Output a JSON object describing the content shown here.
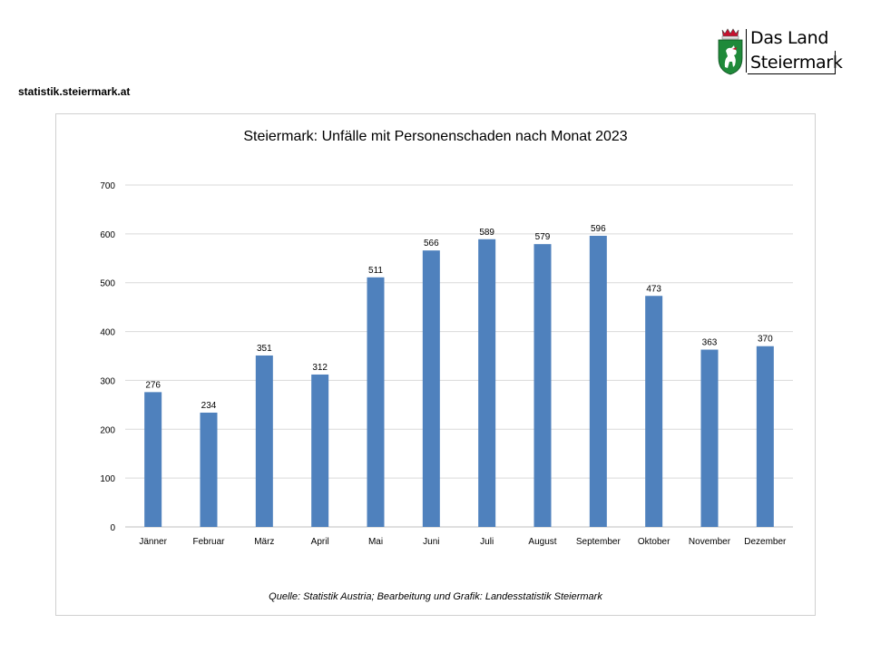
{
  "header": {
    "site_url": "statistik.steiermark.at",
    "logo_line1": "Das Land",
    "logo_line2": "Steiermark"
  },
  "colors": {
    "bar": "#4f81bd",
    "grid": "#d9d9d9",
    "crest_green": "#1f8a3a",
    "crest_red": "#c8102e"
  },
  "chart_data": {
    "type": "bar",
    "title": "Steiermark: Unfälle mit Personenschaden nach Monat 2023",
    "source": "Quelle: Statistik Austria; Bearbeitung und Grafik: Landesstatistik Steiermark",
    "categories": [
      "Jänner",
      "Februar",
      "März",
      "April",
      "Mai",
      "Juni",
      "Juli",
      "August",
      "September",
      "Oktober",
      "November",
      "Dezember"
    ],
    "values": [
      276,
      234,
      351,
      312,
      511,
      566,
      589,
      579,
      596,
      473,
      363,
      370
    ],
    "ylim": [
      0,
      700
    ],
    "yticks": [
      0,
      100,
      200,
      300,
      400,
      500,
      600,
      700
    ],
    "grid": true,
    "legend": "none"
  }
}
